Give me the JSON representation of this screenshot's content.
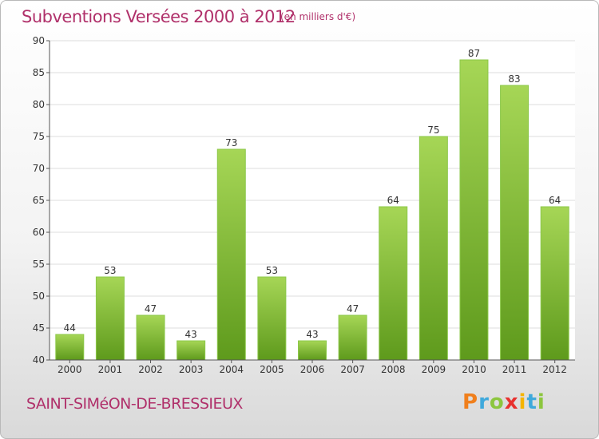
{
  "title": "Subventions Versées 2000 à 2012",
  "unit": "(en milliers d'€)",
  "commune": "SAINT-SIMéON-DE-BRESSIEUX",
  "logo": {
    "text": "Proxiti",
    "colors": [
      "#f07f1c",
      "#3fa9dc",
      "#8cc63e",
      "#e8322f",
      "#f5b400",
      "#3fa9dc",
      "#8cc63e"
    ]
  },
  "chart_data": {
    "type": "bar",
    "categories": [
      "2000",
      "2001",
      "2002",
      "2003",
      "2004",
      "2005",
      "2006",
      "2007",
      "2008",
      "2009",
      "2010",
      "2011",
      "2012"
    ],
    "values": [
      44,
      53,
      47,
      43,
      73,
      53,
      43,
      47,
      64,
      75,
      87,
      83,
      64
    ],
    "ylim": [
      40,
      90
    ],
    "yticks": [
      40,
      45,
      50,
      55,
      60,
      65,
      70,
      75,
      80,
      85,
      90
    ],
    "grid": true,
    "bar_color": "#7ab52e"
  }
}
